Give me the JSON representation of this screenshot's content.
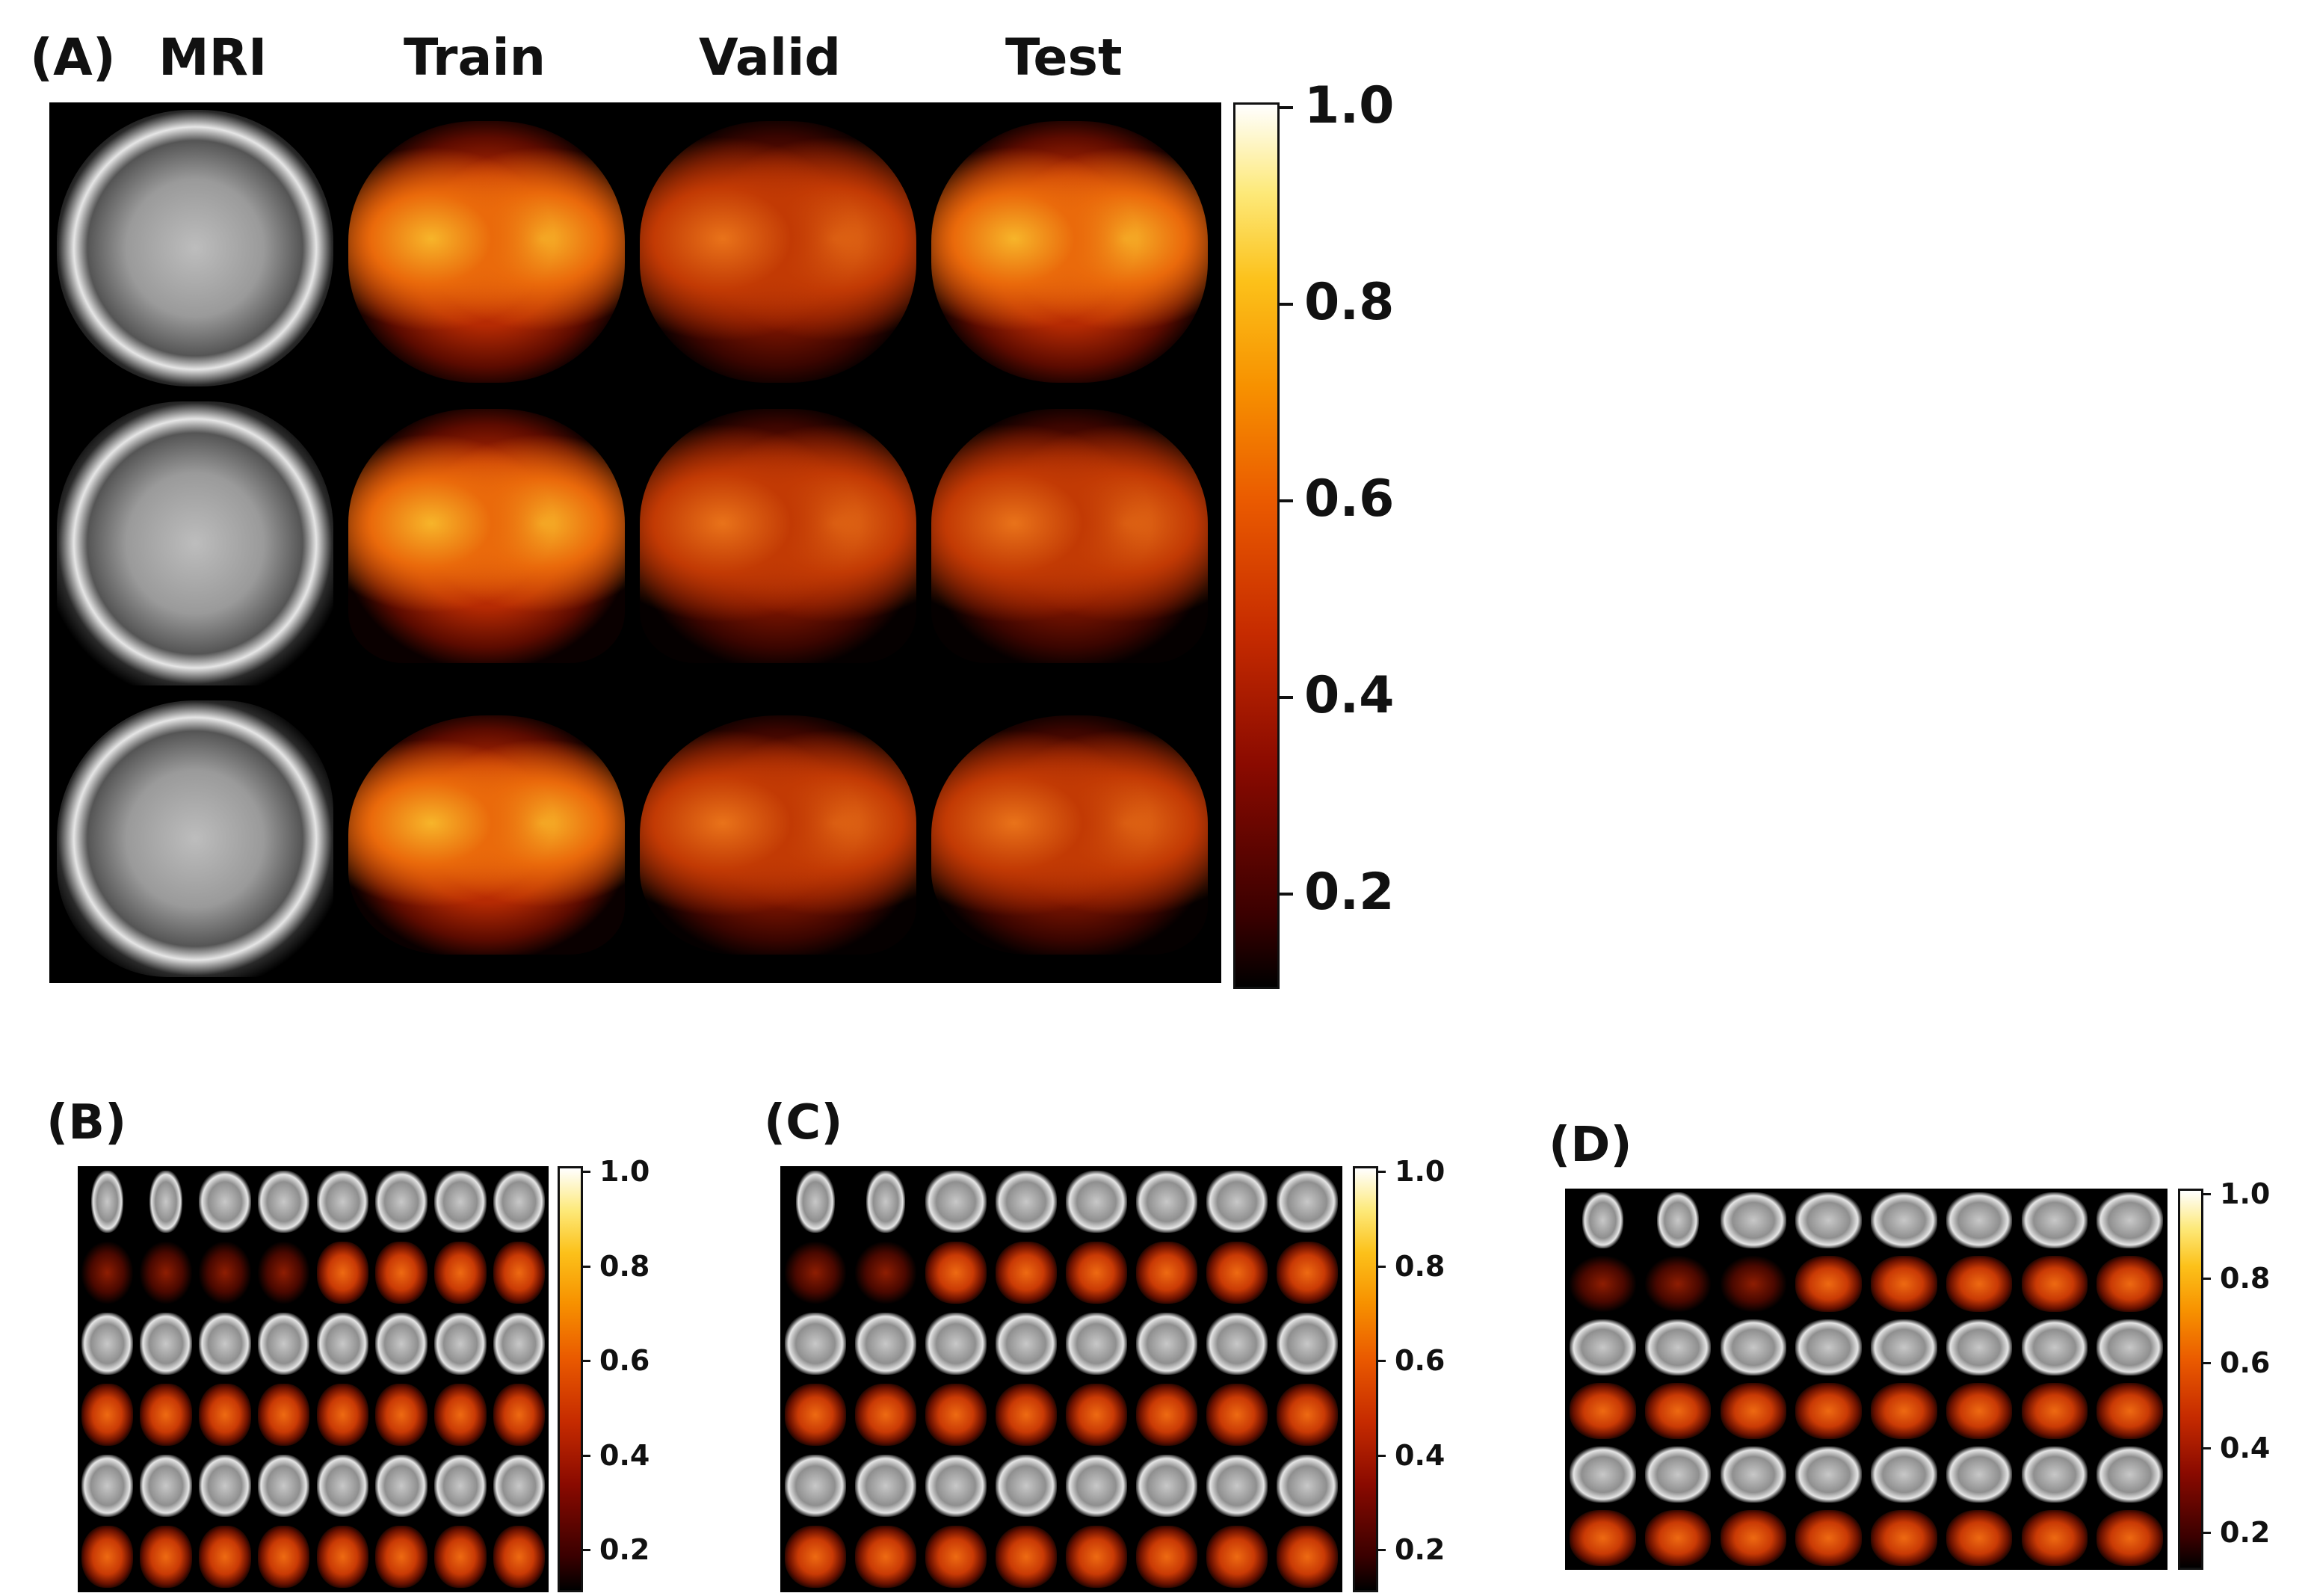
{
  "figure": {
    "panel_a": {
      "label": "(A)",
      "columns": [
        "MRI",
        "Train",
        "Valid",
        "Test"
      ],
      "colorbar_ticks": [
        "1.0",
        "0.8",
        "0.6",
        "0.4",
        "0.2"
      ]
    },
    "panel_b": {
      "label": "(B)",
      "colorbar_ticks": [
        "1.0",
        "0.8",
        "0.6",
        "0.4",
        "0.2"
      ]
    },
    "panel_c": {
      "label": "(C)",
      "colorbar_ticks": [
        "1.0",
        "0.8",
        "0.6",
        "0.4",
        "0.2"
      ]
    },
    "panel_d": {
      "label": "(D)",
      "colorbar_ticks": [
        "1.0",
        "0.8",
        "0.6",
        "0.4",
        "0.2"
      ]
    }
  },
  "colors": {
    "colormap": [
      "#000000",
      "#8a0a00",
      "#ea5a00",
      "#fcc11a",
      "#ffffff"
    ],
    "background": "#ffffff"
  }
}
